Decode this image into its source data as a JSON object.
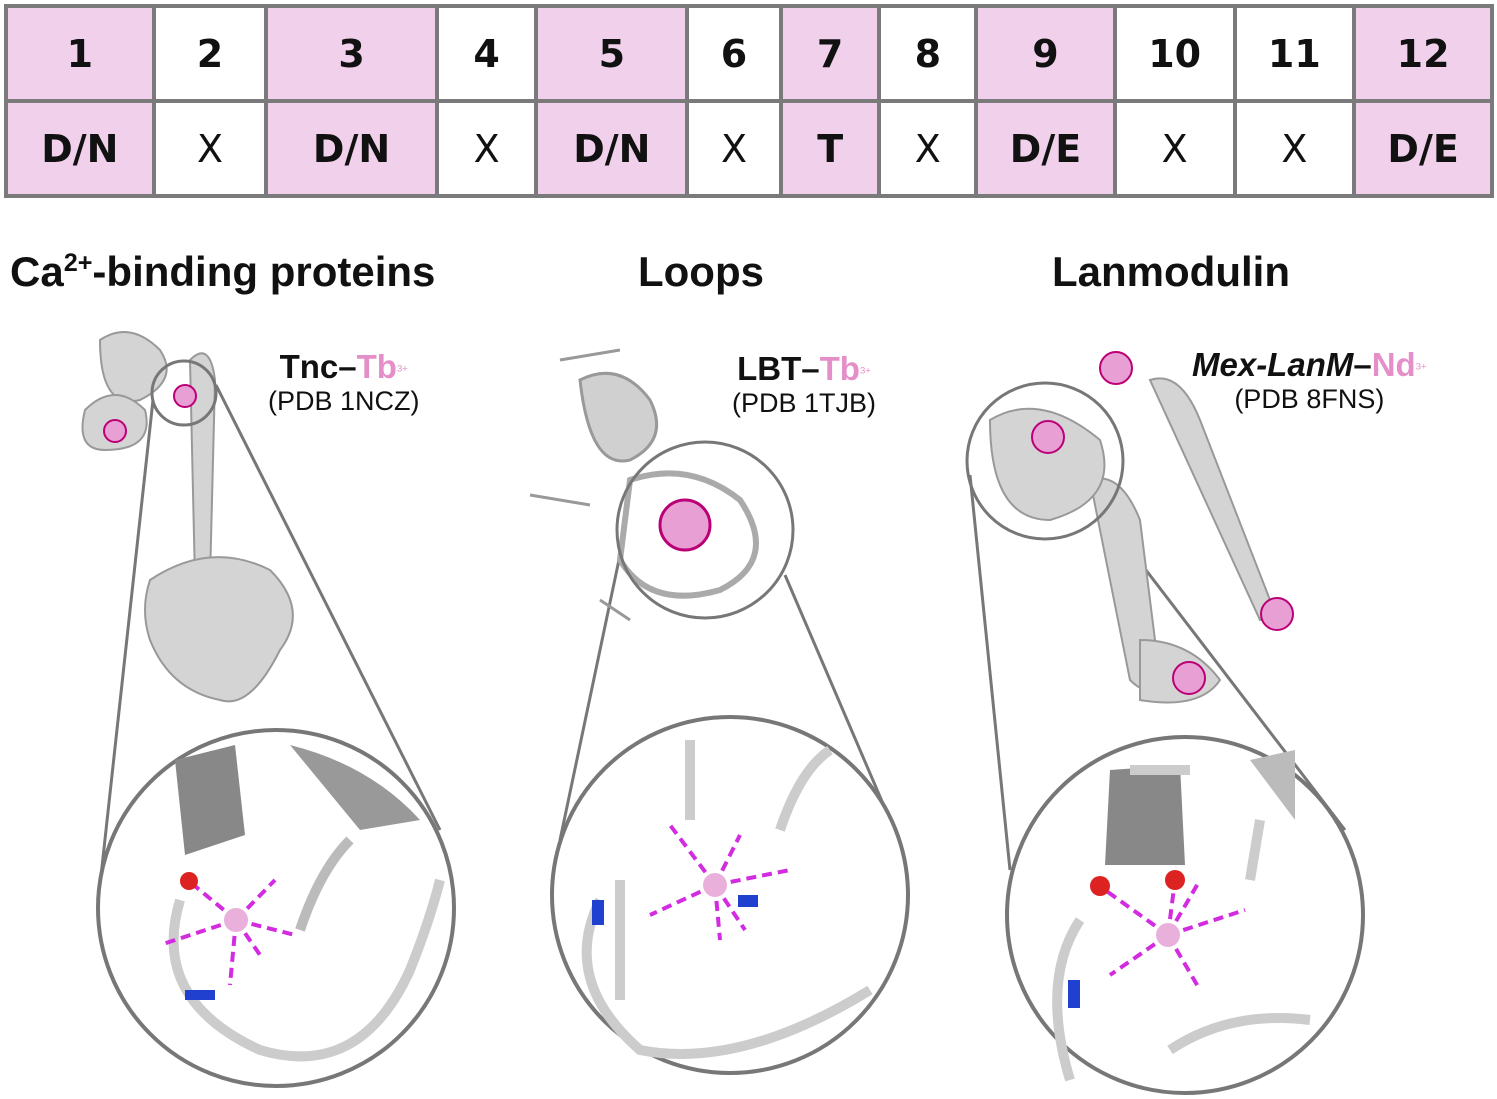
{
  "motif_table": {
    "positions": [
      "1",
      "2",
      "3",
      "4",
      "5",
      "6",
      "7",
      "8",
      "9",
      "10",
      "11",
      "12"
    ],
    "residues": [
      "D/N",
      "X",
      "D/N",
      "X",
      "D/N",
      "X",
      "T",
      "X",
      "D/E",
      "X",
      "X",
      "D/E"
    ],
    "highlighted": [
      true,
      false,
      true,
      false,
      true,
      false,
      true,
      false,
      true,
      false,
      false,
      true
    ],
    "highlight_color": "#f1d0ec",
    "border_color": "#7a7a7a"
  },
  "sections": [
    {
      "title_prefix": "Ca",
      "title_sup": "2+",
      "title_suffix": "-binding proteins",
      "protein": "Tnc",
      "ion": "Tb",
      "ion_charge": "3+",
      "pdb": "(PDB 1NCZ)"
    },
    {
      "title_prefix": "Loops",
      "protein": "LBT",
      "ion": "Tb",
      "ion_charge": "3+",
      "pdb": "(PDB 1TJB)"
    },
    {
      "title_prefix": "Lanmodulin",
      "protein": "Mex-LanM",
      "ion": "Nd",
      "ion_charge": "3+",
      "pdb": "(PDB 8FNS)"
    }
  ],
  "colors": {
    "ion": "#e58fc9",
    "coordination_bond": "#d22be0",
    "protein": "#c8c8c8",
    "oxygen": "#e03030",
    "nitrogen": "#2040d0"
  }
}
